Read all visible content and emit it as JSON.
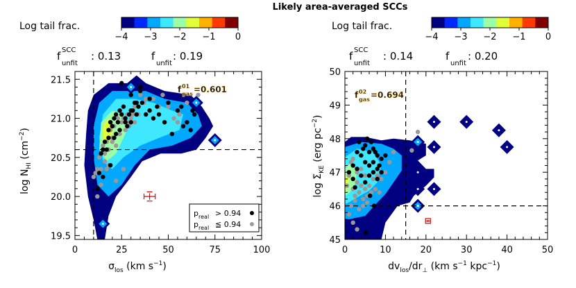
{
  "title": "Likely area-averaged SCCs",
  "colorbar": {
    "label": "Log tail frac.",
    "ticks": [
      "−4",
      "−3",
      "−2",
      "−1",
      "0"
    ],
    "colors": [
      "#000080",
      "#0028ff",
      "#00a8ff",
      "#3fe8ff",
      "#9cffa6",
      "#e0ff3a",
      "#ffb000",
      "#ff3a00",
      "#800000"
    ]
  },
  "legend": {
    "row1_prefix": "p",
    "row1_sub": "real",
    "row1_rel": "> 0.94",
    "row2_prefix": "p",
    "row2_sub": "real",
    "row2_rel": "≦ 0.94",
    "colors": {
      "high": "#000000",
      "low": "#999999"
    }
  },
  "panels": [
    {
      "fscc_label": "f",
      "fscc_sup": "SCC",
      "fscc_sub": "unfit",
      "fscc_value": ": 0.13",
      "f_label": "f",
      "f_sub": "unfit",
      "f_value": ": 0.19",
      "gas_label": "f",
      "gas_sup": "01",
      "gas_sub": "gas",
      "gas_value": "=0.601",
      "xlabel_main": "σ",
      "xlabel_sub": "los",
      "xlabel_unit": " (km s",
      "xlabel_exp": "−1",
      "xlabel_close": ")",
      "ylabel_main": "log N",
      "ylabel_sub": "HI",
      "ylabel_unit": " (cm",
      "ylabel_exp": "−2",
      "ylabel_close": ")"
    },
    {
      "fscc_label": "f",
      "fscc_sup": "SCC",
      "fscc_sub": "unfit",
      "fscc_value": ": 0.14",
      "f_label": "f",
      "f_sub": "unfit",
      "f_value": ": 0.20",
      "gas_label": "f",
      "gas_sup": "02",
      "gas_sub": "gas",
      "gas_value": "=0.694",
      "xlabel_main": "dv",
      "xlabel_sub": "los",
      "xlabel_mid": "/dr",
      "xlabel_sub2": "⊥",
      "xlabel_unit": " (km s",
      "xlabel_exp": "−1",
      "xlabel_unit2": " kpc",
      "xlabel_exp2": "−1",
      "xlabel_close": ")",
      "ylabel_main": "log Σ",
      "ylabel_sub": "KE",
      "ylabel_unit": " (erg pc",
      "ylabel_exp": "−2",
      "ylabel_close": ")"
    }
  ],
  "chart_data": [
    {
      "type": "scatter",
      "xlim": [
        0,
        100
      ],
      "ylim": [
        19.45,
        21.6
      ],
      "xticks": [
        0,
        25,
        50,
        75,
        100
      ],
      "yticks": [
        19.5,
        20.0,
        20.5,
        21.0,
        21.5
      ],
      "ytick_labels": [
        "19.5",
        "20.0",
        "20.5",
        "21.0",
        "21.5"
      ],
      "vline": 10,
      "hline": 20.6,
      "errorbar": {
        "x": 40,
        "y": 20.0,
        "xerr": 3,
        "yerr": 0.05
      },
      "contours": [
        {
          "level": -4,
          "points": [
            [
              10,
              21.3
            ],
            [
              18,
              21.45
            ],
            [
              28,
              21.45
            ],
            [
              33,
              21.55
            ],
            [
              38,
              21.45
            ],
            [
              48,
              21.35
            ],
            [
              62,
              21.3
            ],
            [
              68,
              21.15
            ],
            [
              72,
              21.0
            ],
            [
              74,
              20.9
            ],
            [
              70,
              20.75
            ],
            [
              65,
              20.6
            ],
            [
              57,
              20.55
            ],
            [
              46,
              20.55
            ],
            [
              36,
              20.45
            ],
            [
              30,
              20.25
            ],
            [
              22,
              20.0
            ],
            [
              18,
              19.75
            ],
            [
              16,
              19.45
            ],
            [
              12,
              19.45
            ],
            [
              10,
              19.7
            ],
            [
              7,
              20.0
            ],
            [
              5,
              20.4
            ],
            [
              6,
              20.8
            ],
            [
              7,
              21.1
            ]
          ]
        },
        {
          "level": -3,
          "points": [
            [
              13,
              21.2
            ],
            [
              20,
              21.35
            ],
            [
              30,
              21.35
            ],
            [
              38,
              21.35
            ],
            [
              48,
              21.25
            ],
            [
              60,
              21.2
            ],
            [
              66,
              21.05
            ],
            [
              68,
              20.9
            ],
            [
              62,
              20.75
            ],
            [
              52,
              20.65
            ],
            [
              40,
              20.6
            ],
            [
              32,
              20.4
            ],
            [
              25,
              20.15
            ],
            [
              18,
              20.0
            ],
            [
              12,
              20.15
            ],
            [
              10,
              20.5
            ],
            [
              10,
              20.9
            ]
          ]
        },
        {
          "level": -2.5,
          "points": [
            [
              15,
              21.05
            ],
            [
              22,
              21.25
            ],
            [
              32,
              21.25
            ],
            [
              42,
              21.2
            ],
            [
              52,
              21.1
            ],
            [
              58,
              21.05
            ],
            [
              56,
              20.85
            ],
            [
              45,
              20.75
            ],
            [
              35,
              20.65
            ],
            [
              26,
              20.5
            ],
            [
              20,
              20.35
            ],
            [
              15,
              20.45
            ],
            [
              13,
              20.75
            ]
          ]
        },
        {
          "level": -2,
          "points": [
            [
              14,
              20.95
            ],
            [
              20,
              21.1
            ],
            [
              26,
              21.05
            ],
            [
              28,
              20.85
            ],
            [
              22,
              20.55
            ],
            [
              17,
              20.45
            ],
            [
              13,
              20.6
            ]
          ]
        },
        {
          "level": -1.5,
          "points": [
            [
              15,
              20.9
            ],
            [
              18,
              21.0
            ],
            [
              21,
              20.9
            ],
            [
              19,
              20.7
            ],
            [
              15,
              20.7
            ]
          ]
        }
      ],
      "islands": [
        {
          "x": 65,
          "y": 21.2,
          "level": -3
        },
        {
          "x": 75,
          "y": 20.72,
          "level": -3
        },
        {
          "x": 15,
          "y": 19.65,
          "level": -3
        },
        {
          "x": 30,
          "y": 21.4,
          "level": -3
        }
      ],
      "series": [
        {
          "name": "p_real > 0.94",
          "color": "black",
          "x": [
            12,
            13,
            14,
            15,
            16,
            17,
            18,
            19,
            19,
            20,
            21,
            21,
            22,
            22,
            23,
            24,
            24,
            25,
            26,
            27,
            27,
            28,
            29,
            30,
            30,
            31,
            32,
            33,
            34,
            35,
            36,
            38,
            40,
            42,
            44,
            45,
            48,
            52,
            55,
            57,
            58,
            60,
            62,
            63,
            64,
            35,
            25,
            20,
            18,
            15,
            30,
            33,
            40,
            50
          ],
          "y": [
            20.1,
            20.3,
            20.55,
            20.6,
            20.7,
            20.6,
            20.85,
            20.95,
            20.4,
            20.9,
            21.0,
            20.75,
            21.05,
            20.8,
            20.95,
            21.1,
            20.85,
            21.05,
            21.15,
            20.95,
            21.0,
            20.9,
            21.05,
            21.1,
            20.95,
            21.1,
            21.2,
            21.05,
            21.15,
            21.35,
            21.2,
            21.05,
            21.1,
            21.0,
            21.15,
            21.05,
            20.95,
            20.8,
            21.1,
            21.15,
            20.9,
            20.95,
            20.85,
            21.1,
            21.05,
            21.4,
            21.45,
            20.9,
            20.75,
            20.25,
            21.3,
            21.2,
            21.25,
            21.2
          ]
        },
        {
          "name": "p_real <= 0.94",
          "color": "gray",
          "x": [
            10,
            11,
            12,
            13,
            14,
            14,
            15,
            16,
            17,
            17,
            18,
            19,
            20,
            21,
            22,
            23,
            24,
            25,
            26,
            27,
            28,
            29,
            30,
            31,
            32,
            34,
            35,
            37,
            40,
            42,
            45,
            47,
            50,
            53,
            55,
            56,
            60,
            66,
            12,
            14,
            16,
            18,
            20,
            22,
            26,
            28,
            32,
            38
          ],
          "y": [
            20.25,
            20.3,
            20.35,
            20.5,
            20.55,
            20.15,
            20.65,
            20.45,
            20.7,
            20.35,
            20.6,
            20.85,
            20.7,
            20.9,
            20.65,
            21.0,
            20.8,
            20.95,
            21.0,
            20.85,
            21.05,
            20.9,
            21.0,
            21.05,
            20.95,
            21.05,
            21.3,
            21.2,
            21.1,
            21.25,
            21.15,
            21.3,
            21.15,
            21.0,
            20.95,
            21.05,
            21.2,
            21.3,
            20.0,
            20.35,
            20.55,
            20.4,
            20.75,
            20.2,
            20.35,
            20.95,
            21.15,
            21.25
          ]
        }
      ]
    },
    {
      "type": "scatter",
      "xlim": [
        0,
        50
      ],
      "ylim": [
        45.0,
        50.0
      ],
      "xticks": [
        0,
        10,
        20,
        30,
        40,
        50
      ],
      "yticks": [
        45,
        46,
        47,
        48,
        49,
        50
      ],
      "ytick_labels": [
        "45",
        "46",
        "47",
        "48",
        "49",
        "50"
      ],
      "vline": 15,
      "hline": 46.0,
      "errorbar": {
        "x": 20.5,
        "y": 45.55,
        "xerr": 0.6,
        "yerr": 0.05
      },
      "contours": [
        {
          "level": -4,
          "points": [
            [
              0,
              45.0
            ],
            [
              0,
              47.9
            ],
            [
              1.5,
              48.05
            ],
            [
              5,
              48.05
            ],
            [
              9,
              47.95
            ],
            [
              12,
              48.0
            ],
            [
              16,
              47.95
            ],
            [
              20,
              47.85
            ],
            [
              20,
              47.5
            ],
            [
              18,
              47.35
            ],
            [
              20,
              47.1
            ],
            [
              22,
              47.1
            ],
            [
              22,
              46.85
            ],
            [
              20,
              46.6
            ],
            [
              17,
              46.3
            ],
            [
              16,
              46.1
            ],
            [
              13,
              46.0
            ],
            [
              10,
              45.5
            ],
            [
              9,
              45.0
            ]
          ]
        },
        {
          "level": -3,
          "points": [
            [
              0,
              45.6
            ],
            [
              0,
              47.75
            ],
            [
              4,
              47.9
            ],
            [
              9,
              47.85
            ],
            [
              12,
              47.7
            ],
            [
              14,
              47.5
            ],
            [
              14,
              47.05
            ],
            [
              12,
              46.7
            ],
            [
              10,
              46.35
            ],
            [
              8,
              46.1
            ],
            [
              5,
              45.7
            ],
            [
              1,
              45.6
            ]
          ]
        },
        {
          "level": -2.5,
          "points": [
            [
              0,
              46.05
            ],
            [
              0,
              47.45
            ],
            [
              3,
              47.7
            ],
            [
              7,
              47.6
            ],
            [
              9,
              47.2
            ],
            [
              8,
              46.7
            ],
            [
              6,
              46.45
            ],
            [
              3,
              46.25
            ],
            [
              1,
              46.1
            ]
          ]
        },
        {
          "level": -2,
          "points": [
            [
              0,
              46.3
            ],
            [
              0,
              47.1
            ],
            [
              1.5,
              47.3
            ],
            [
              3,
              47.0
            ],
            [
              2.5,
              46.6
            ],
            [
              1.2,
              46.4
            ]
          ]
        },
        {
          "level": -1.5,
          "points": [
            [
              0,
              46.45
            ],
            [
              0,
              46.9
            ],
            [
              1,
              46.85
            ],
            [
              0.8,
              46.55
            ]
          ]
        }
      ],
      "islands": [
        {
          "x": 18,
          "y": 47.9,
          "level": -3
        },
        {
          "x": 22,
          "y": 48.5,
          "level": -4
        },
        {
          "x": 22,
          "y": 47.75,
          "level": -4
        },
        {
          "x": 18,
          "y": 47.0,
          "level": -4
        },
        {
          "x": 18,
          "y": 46.5,
          "level": -4
        },
        {
          "x": 22,
          "y": 46.5,
          "level": -4
        },
        {
          "x": 18,
          "y": 46.0,
          "level": -3
        },
        {
          "x": 30,
          "y": 48.5,
          "level": -4
        },
        {
          "x": 38,
          "y": 48.25,
          "level": -4
        },
        {
          "x": 40,
          "y": 47.75,
          "level": -4
        }
      ],
      "series": [
        {
          "name": "p_real > 0.94",
          "color": "black",
          "x": [
            1,
            2,
            2,
            3,
            3,
            4,
            4,
            5,
            5,
            5,
            6,
            6,
            6,
            7,
            7,
            7,
            8,
            8,
            8,
            9,
            9,
            10,
            3.5,
            4.5,
            5.5,
            6.5,
            7.5,
            8.5,
            2.5,
            6.2,
            7.2,
            5.2
          ],
          "y": [
            47.0,
            47.2,
            46.8,
            47.6,
            47.1,
            47.5,
            46.9,
            47.8,
            47.3,
            46.7,
            47.6,
            47.2,
            46.9,
            47.7,
            47.3,
            47.0,
            47.5,
            47.1,
            46.8,
            47.4,
            47.0,
            47.5,
            47.9,
            47.7,
            48.0,
            47.9,
            47.6,
            47.2,
            46.55,
            46.3,
            46.0,
            45.2
          ]
        },
        {
          "name": "p_real <= 0.94",
          "color": "gray",
          "x": [
            0.5,
            1,
            1.5,
            2,
            2,
            2.5,
            3,
            3,
            3.5,
            4,
            4,
            4.5,
            5,
            5,
            5.5,
            6,
            6.5,
            7,
            7.5,
            8,
            8.5,
            9,
            10,
            11,
            12,
            1.5,
            2.5,
            3.5,
            4.5,
            5.5,
            1,
            2,
            3,
            18,
            16.5
          ],
          "y": [
            46.6,
            46.9,
            47.3,
            46.5,
            47.4,
            46.3,
            46.7,
            47.0,
            46.4,
            46.6,
            47.1,
            46.2,
            46.5,
            46.9,
            46.3,
            46.6,
            46.4,
            46.8,
            46.5,
            46.9,
            46.4,
            46.8,
            47.0,
            47.3,
            47.6,
            46.0,
            46.15,
            45.9,
            46.0,
            46.1,
            45.75,
            45.5,
            45.3,
            48.2,
            47.65
          ]
        }
      ]
    }
  ]
}
